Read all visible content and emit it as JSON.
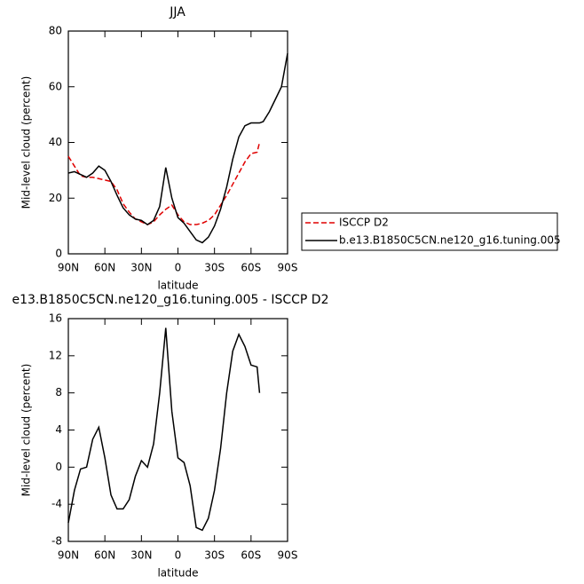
{
  "chart_data": [
    {
      "type": "line",
      "title": "JJA",
      "ylabel": "Mid-level cloud (percent)",
      "xlabel": "latitude",
      "x": [
        90,
        85,
        80,
        75,
        70,
        65,
        60,
        55,
        50,
        45,
        40,
        35,
        30,
        25,
        20,
        15,
        10,
        5,
        0,
        -5,
        -10,
        -15,
        -20,
        -25,
        -30,
        -35,
        -40,
        -45,
        -50,
        -55,
        -60,
        -65,
        -67,
        -70,
        -75,
        -80,
        -85,
        -90
      ],
      "xlim": [
        90,
        -90
      ],
      "xticks": [
        {
          "value": 90,
          "label": "90N"
        },
        {
          "value": 60,
          "label": "60N"
        },
        {
          "value": 30,
          "label": "30N"
        },
        0,
        {
          "value": -30,
          "label": "30S"
        },
        {
          "value": -60,
          "label": "60S"
        },
        {
          "value": -90,
          "label": "90S"
        }
      ],
      "ylim": [
        0,
        80
      ],
      "yticks": [
        0,
        20,
        40,
        60,
        80
      ],
      "legend": "right",
      "series": [
        {
          "name": "ISCCP D2",
          "color": "#e00000",
          "dash": "dashed",
          "values": [
            35,
            31.5,
            28,
            27.5,
            27.5,
            27,
            26.5,
            26,
            23,
            18,
            15,
            12.5,
            11.5,
            10.5,
            11.5,
            14,
            16,
            17.5,
            14,
            11.5,
            10.5,
            10.5,
            11,
            12,
            14,
            17.5,
            21,
            25,
            29,
            33,
            36,
            36.5,
            40,
            null,
            null,
            null,
            null,
            null
          ]
        },
        {
          "name": "b.e13.B1850C5CN.ne120_g16.tuning.005",
          "color": "#000000",
          "dash": "solid",
          "values": [
            29,
            29.5,
            28.5,
            27.5,
            29,
            31.5,
            30,
            26,
            21,
            16.5,
            14,
            12.5,
            12,
            10.5,
            12,
            17,
            31,
            20,
            13,
            11,
            8,
            5,
            4,
            6,
            10,
            16,
            24,
            34,
            42,
            46,
            47,
            47,
            47,
            47.5,
            51,
            55.5,
            60,
            72
          ]
        }
      ]
    },
    {
      "type": "line",
      "title": "e13.B1850C5CN.ne120_g16.tuning.005 - ISCCP D2",
      "ylabel": "Mid-level cloud (percent)",
      "xlabel": "latitude",
      "x": [
        90,
        85,
        80,
        75,
        70,
        65,
        60,
        55,
        50,
        45,
        40,
        35,
        30,
        25,
        20,
        15,
        10,
        5,
        0,
        -5,
        -10,
        -15,
        -20,
        -25,
        -30,
        -35,
        -40,
        -45,
        -50,
        -55,
        -60,
        -65,
        -67
      ],
      "xlim": [
        90,
        -90
      ],
      "xticks": [
        {
          "value": 90,
          "label": "90N"
        },
        {
          "value": 60,
          "label": "60N"
        },
        {
          "value": 30,
          "label": "30N"
        },
        0,
        {
          "value": -30,
          "label": "30S"
        },
        {
          "value": -60,
          "label": "60S"
        },
        {
          "value": -90,
          "label": "90S"
        }
      ],
      "ylim": [
        -8,
        16
      ],
      "yticks": [
        -8,
        -4,
        0,
        4,
        8,
        12,
        16
      ],
      "series": [
        {
          "color": "#000000",
          "dash": "solid",
          "values": [
            -6,
            -2.5,
            -0.2,
            0,
            3,
            4.3,
            1,
            -3,
            -4.5,
            -4.5,
            -3.5,
            -1,
            0.7,
            0,
            2.5,
            8,
            15,
            6,
            1,
            0.5,
            -2,
            -6.5,
            -6.8,
            -5.5,
            -2.5,
            2,
            8,
            12.5,
            14.3,
            13,
            11,
            10.8,
            8
          ]
        }
      ]
    }
  ]
}
